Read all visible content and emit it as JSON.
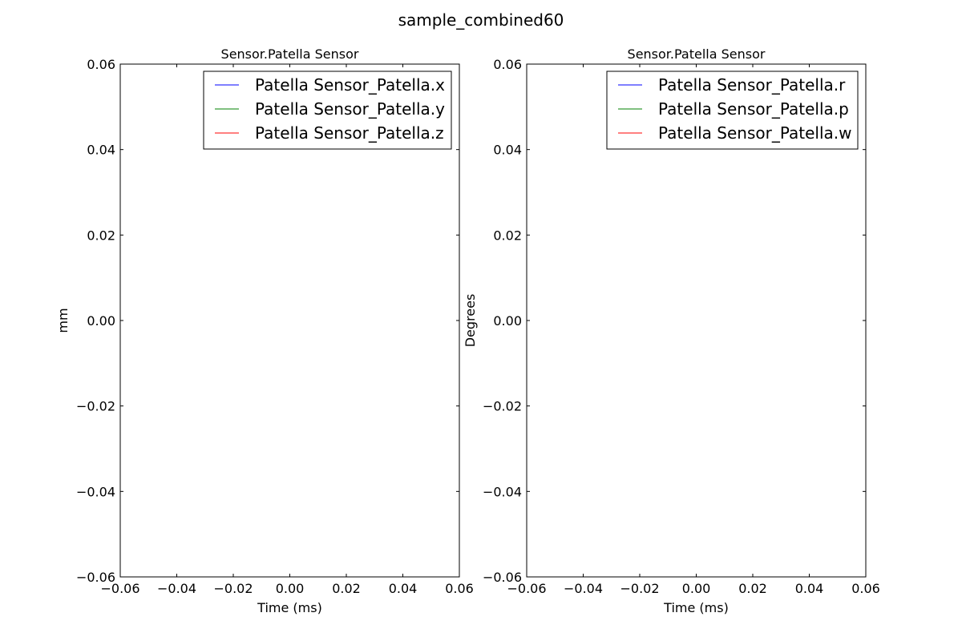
{
  "figure": {
    "title": "sample_combined60"
  },
  "chart_data": [
    {
      "type": "line",
      "title": "Sensor.Patella Sensor",
      "xlabel": "Time (ms)",
      "ylabel": "mm",
      "xlim": [
        -0.06,
        0.06
      ],
      "ylim": [
        -0.06,
        0.06
      ],
      "xticks": [
        -0.06,
        -0.04,
        -0.02,
        0.0,
        0.02,
        0.04,
        0.06
      ],
      "yticks": [
        -0.06,
        -0.04,
        -0.02,
        0.0,
        0.02,
        0.04,
        0.06
      ],
      "xtick_labels": [
        "−0.06",
        "−0.04",
        "−0.02",
        "0.00",
        "0.02",
        "0.04",
        "0.06"
      ],
      "ytick_labels": [
        "−0.06",
        "−0.04",
        "−0.02",
        "0.00",
        "0.02",
        "0.04",
        "0.06"
      ],
      "grid": false,
      "legend_position": "top-right",
      "series": [
        {
          "name": "Patella Sensor_Patella.x",
          "color": "#0000ff",
          "x": [],
          "values": []
        },
        {
          "name": "Patella Sensor_Patella.y",
          "color": "#008000",
          "x": [],
          "values": []
        },
        {
          "name": "Patella Sensor_Patella.z",
          "color": "#ff0000",
          "x": [],
          "values": []
        }
      ]
    },
    {
      "type": "line",
      "title": "Sensor.Patella Sensor",
      "xlabel": "Time (ms)",
      "ylabel": "Degrees",
      "xlim": [
        -0.06,
        0.06
      ],
      "ylim": [
        -0.06,
        0.06
      ],
      "xticks": [
        -0.06,
        -0.04,
        -0.02,
        0.0,
        0.02,
        0.04,
        0.06
      ],
      "yticks": [
        -0.06,
        -0.04,
        -0.02,
        0.0,
        0.02,
        0.04,
        0.06
      ],
      "xtick_labels": [
        "−0.06",
        "−0.04",
        "−0.02",
        "0.00",
        "0.02",
        "0.04",
        "0.06"
      ],
      "ytick_labels": [
        "−0.06",
        "−0.04",
        "−0.02",
        "0.00",
        "0.02",
        "0.04",
        "0.06"
      ],
      "grid": false,
      "legend_position": "top-right",
      "series": [
        {
          "name": "Patella Sensor_Patella.r",
          "color": "#0000ff",
          "x": [],
          "values": []
        },
        {
          "name": "Patella Sensor_Patella.p",
          "color": "#008000",
          "x": [],
          "values": []
        },
        {
          "name": "Patella Sensor_Patella.w",
          "color": "#ff0000",
          "x": [],
          "values": []
        }
      ]
    }
  ]
}
